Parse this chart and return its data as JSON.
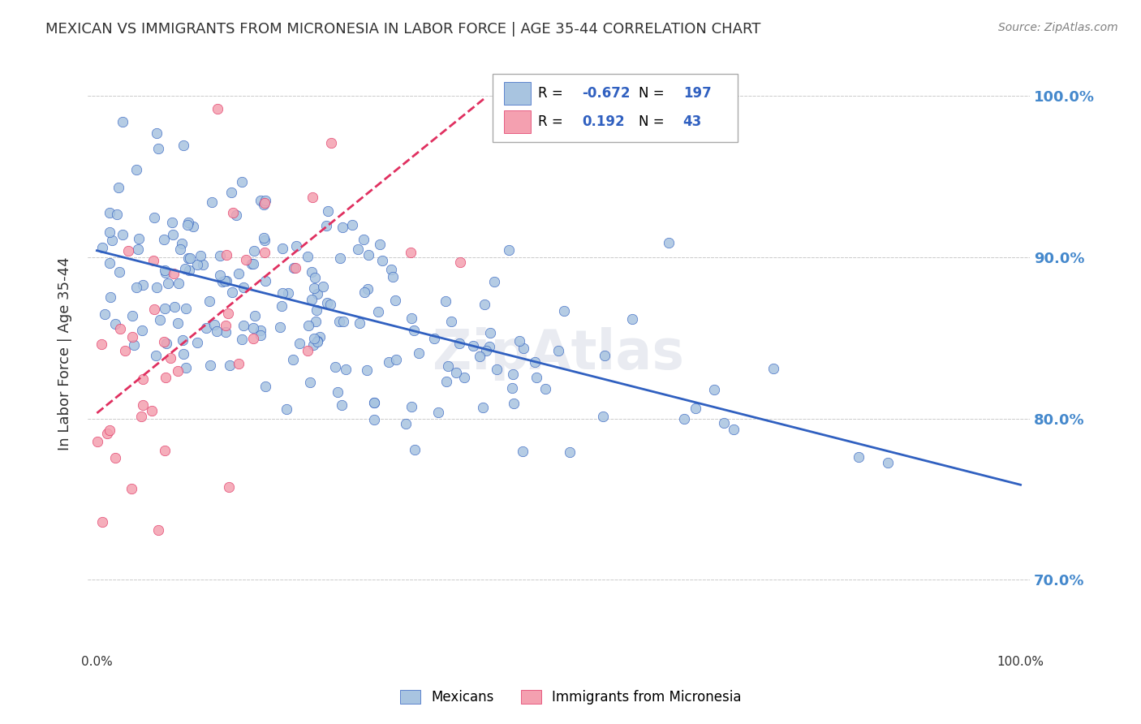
{
  "title": "MEXICAN VS IMMIGRANTS FROM MICRONESIA IN LABOR FORCE | AGE 35-44 CORRELATION CHART",
  "source": "Source: ZipAtlas.com",
  "ylabel": "In Labor Force | Age 35-44",
  "legend_labels": [
    "Mexicans",
    "Immigrants from Micronesia"
  ],
  "blue_color": "#a8c4e0",
  "pink_color": "#f4a0b0",
  "blue_line_color": "#3060c0",
  "pink_line_color": "#e03060",
  "R_blue": -0.672,
  "N_blue": 197,
  "R_pink": 0.192,
  "N_pink": 43,
  "blue_seed": 42,
  "pink_seed": 7,
  "background_color": "#ffffff",
  "grid_color": "#cccccc",
  "title_color": "#333333",
  "axis_label_color": "#333333",
  "right_tick_color": "#4488cc",
  "watermark": "ZipAtlas",
  "watermark_color": "#c0c8d8"
}
